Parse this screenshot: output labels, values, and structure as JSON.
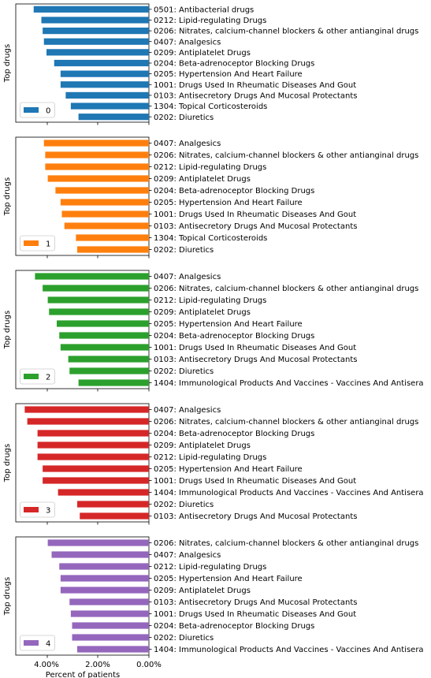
{
  "chart_data": [
    {
      "type": "bar",
      "orientation": "horizontal",
      "x_inverted": true,
      "xlim": [
        0,
        5.2
      ],
      "ylabel": "Top drugs",
      "xlabel": "",
      "legend": {
        "label": "0",
        "placement": "lower-left"
      },
      "color": "#1f77b4",
      "categories": [
        "0501: Antibacterial drugs",
        "0212: Lipid-regulating Drugs",
        "0206: Nitrates, calcium-channel blockers & other antianginal drugs",
        "0407: Analgesics",
        "0209: Antiplatelet Drugs",
        "0204: Beta-adrenoceptor Blocking Drugs",
        "0205: Hypertension And Heart Failure",
        "1001: Drugs Used In Rheumatic Diseases And Gout",
        "0103: Antisecretory Drugs And Mucosal Protectants",
        "1304: Topical Corticosteroids",
        "0202: Diuretics"
      ],
      "values": [
        4.5,
        4.2,
        4.15,
        4.1,
        4.0,
        3.7,
        3.45,
        3.45,
        3.25,
        3.05,
        2.75
      ]
    },
    {
      "type": "bar",
      "orientation": "horizontal",
      "x_inverted": true,
      "xlim": [
        0,
        5.2
      ],
      "ylabel": "Top drugs",
      "xlabel": "",
      "legend": {
        "label": "1",
        "placement": "lower-left"
      },
      "color": "#ff7f0e",
      "categories": [
        "0407: Analgesics",
        "0206: Nitrates, calcium-channel blockers & other antianginal drugs",
        "0212: Lipid-regulating Drugs",
        "0209: Antiplatelet Drugs",
        "0204: Beta-adrenoceptor Blocking Drugs",
        "0205: Hypertension And Heart Failure",
        "1001: Drugs Used In Rheumatic Diseases And Gout",
        "0103: Antisecretory Drugs And Mucosal Protectants",
        "1304: Topical Corticosteroids",
        "0202: Diuretics"
      ],
      "values": [
        4.1,
        4.05,
        4.05,
        3.95,
        3.65,
        3.45,
        3.4,
        3.3,
        2.85,
        2.8
      ]
    },
    {
      "type": "bar",
      "orientation": "horizontal",
      "x_inverted": true,
      "xlim": [
        0,
        5.2
      ],
      "ylabel": "Top drugs",
      "xlabel": "",
      "legend": {
        "label": "2",
        "placement": "lower-left"
      },
      "color": "#2ca02c",
      "categories": [
        "0407: Analgesics",
        "0206: Nitrates, calcium-channel blockers & other antianginal drugs",
        "0212: Lipid-regulating Drugs",
        "0209: Antiplatelet Drugs",
        "0205: Hypertension And Heart Failure",
        "0204: Beta-adrenoceptor Blocking Drugs",
        "1001: Drugs Used In Rheumatic Diseases And Gout",
        "0103: Antisecretory Drugs And Mucosal Protectants",
        "0202: Diuretics",
        "1404: Immunological Products And Vaccines - Vaccines And Antisera"
      ],
      "values": [
        4.45,
        4.15,
        3.95,
        3.9,
        3.6,
        3.5,
        3.45,
        3.15,
        3.1,
        2.75
      ]
    },
    {
      "type": "bar",
      "orientation": "horizontal",
      "x_inverted": true,
      "xlim": [
        0,
        5.2
      ],
      "ylabel": "Top drugs",
      "xlabel": "",
      "legend": {
        "label": "3",
        "placement": "lower-left"
      },
      "color": "#d62728",
      "categories": [
        "0407: Analgesics",
        "0206: Nitrates, calcium-channel blockers & other antianginal drugs",
        "0204: Beta-adrenoceptor Blocking Drugs",
        "0209: Antiplatelet Drugs",
        "0212: Lipid-regulating Drugs",
        "0205: Hypertension And Heart Failure",
        "1001: Drugs Used In Rheumatic Diseases And Gout",
        "1404: Immunological Products And Vaccines - Vaccines And Antisera",
        "0202: Diuretics",
        "0103: Antisecretory Drugs And Mucosal Protectants"
      ],
      "values": [
        4.85,
        4.75,
        4.35,
        4.35,
        4.35,
        4.15,
        4.15,
        3.55,
        2.8,
        2.7
      ]
    },
    {
      "type": "bar",
      "orientation": "horizontal",
      "x_inverted": true,
      "xlim": [
        0,
        5.2
      ],
      "ylabel": "Top drugs",
      "xlabel": "Percent of patients",
      "xticks": [
        "4.00%",
        "2.00%",
        "0.00%"
      ],
      "xtick_values": [
        4,
        2,
        0
      ],
      "legend": {
        "label": "4",
        "placement": "lower-left"
      },
      "color": "#9467bd",
      "categories": [
        "0206: Nitrates, calcium-channel blockers & other antianginal drugs",
        "0407: Analgesics",
        "0212: Lipid-regulating Drugs",
        "0205: Hypertension And Heart Failure",
        "0209: Antiplatelet Drugs",
        "0103: Antisecretory Drugs And Mucosal Protectants",
        "1001: Drugs Used In Rheumatic Diseases And Gout",
        "0204: Beta-adrenoceptor Blocking Drugs",
        "0202: Diuretics",
        "1404: Immunological Products And Vaccines - Vaccines And Antisera"
      ],
      "values": [
        3.95,
        3.8,
        3.5,
        3.45,
        3.45,
        3.1,
        3.05,
        3.0,
        3.0,
        2.8
      ]
    }
  ]
}
